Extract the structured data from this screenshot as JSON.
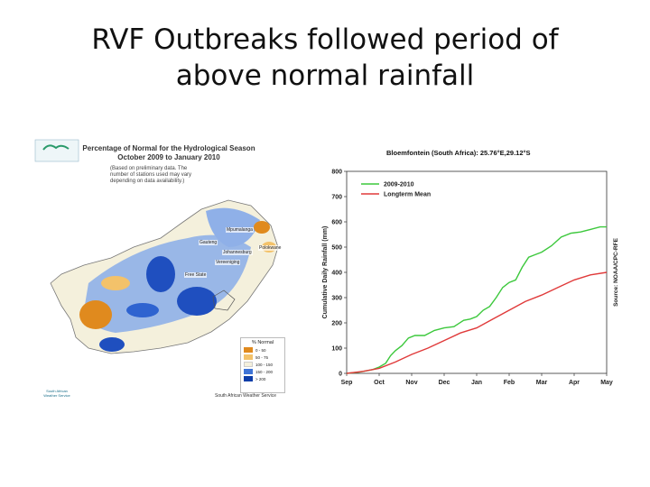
{
  "slide": {
    "title_line1": "RVF Outbreaks followed period of",
    "title_line2": "above normal rainfall"
  },
  "map": {
    "title_line1": "Percentage of Normal for the Hydrological Season",
    "title_line2": "October 2009 to January 2010",
    "note_line1": "(Based on preliminary data. The",
    "note_line2": "number of stations used may vary",
    "note_line3": "depending on data availability.)",
    "places": [
      "Mpumalanga",
      "Gauteng",
      "Johannesburg",
      "Vereeniging",
      "Free State",
      "Polokwane"
    ],
    "legend": {
      "title": "% Normal",
      "items": [
        {
          "label": "0 - 50",
          "color": "#e08a1e"
        },
        {
          "label": "50 - 75",
          "color": "#f3c26a"
        },
        {
          "label": "100 - 150",
          "color": "#f4f0dc"
        },
        {
          "label": "150 - 200",
          "color": "#3f74d6"
        },
        {
          "label": "> 200",
          "color": "#0d3da8"
        }
      ]
    },
    "logo_line1": "South African",
    "logo_line2": "Weather Service",
    "credit": "South African Weather Service"
  },
  "chart_data": {
    "type": "line",
    "title": "Bloemfontein (South Africa): 25.76°E,29.12°S",
    "ylabel": "Cumulative Daily Rainfall (mm)",
    "xlabel": "",
    "ylim": [
      0,
      800
    ],
    "yticks": [
      0,
      100,
      200,
      300,
      400,
      500,
      600,
      700,
      800
    ],
    "xticks": [
      "Sep",
      "Oct",
      "Nov",
      "Dec",
      "Jan",
      "Feb",
      "Mar",
      "Apr",
      "May"
    ],
    "grid": false,
    "legend_position": "top-left",
    "source": "Source: NOAA/CPC-RFE",
    "series": [
      {
        "name": "2009-2010",
        "color": "#3cc83c",
        "x": [
          0,
          0.4,
          0.8,
          1.0,
          1.2,
          1.35,
          1.5,
          1.7,
          1.9,
          2.1,
          2.4,
          2.7,
          3.0,
          3.3,
          3.6,
          3.8,
          4.0,
          4.2,
          4.4,
          4.6,
          4.8,
          5.0,
          5.2,
          5.4,
          5.6,
          5.8,
          6.0,
          6.3,
          6.6,
          6.9,
          7.2,
          7.5,
          7.8,
          8.0
        ],
        "values": [
          0,
          5,
          15,
          25,
          40,
          70,
          90,
          110,
          140,
          150,
          150,
          170,
          180,
          185,
          210,
          215,
          225,
          250,
          265,
          300,
          340,
          360,
          370,
          420,
          460,
          470,
          480,
          505,
          540,
          555,
          560,
          570,
          580,
          580
        ]
      },
      {
        "name": "Longterm Mean",
        "color": "#e03a3a",
        "x": [
          0,
          0.5,
          1.0,
          1.5,
          2.0,
          2.5,
          3.0,
          3.5,
          4.0,
          4.5,
          5.0,
          5.5,
          6.0,
          6.5,
          7.0,
          7.5,
          8.0
        ],
        "values": [
          0,
          8,
          20,
          45,
          75,
          100,
          130,
          160,
          180,
          215,
          250,
          285,
          310,
          340,
          370,
          390,
          400
        ]
      }
    ]
  }
}
